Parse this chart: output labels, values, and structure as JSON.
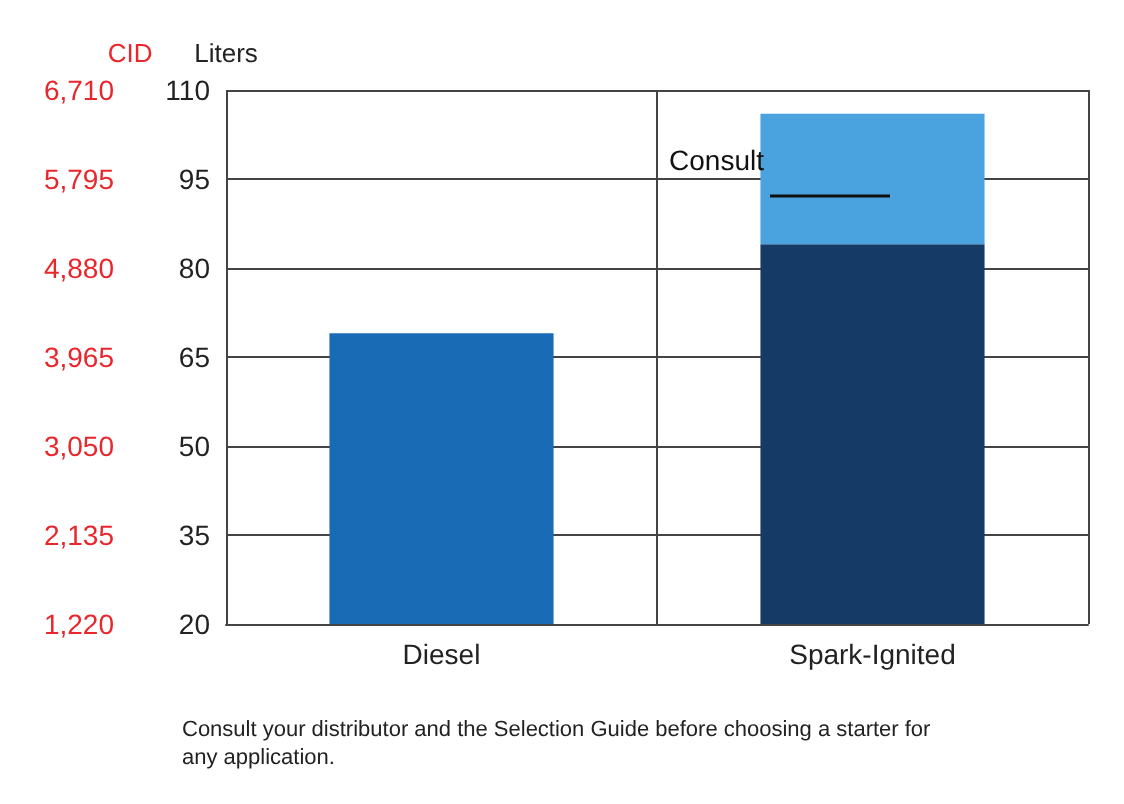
{
  "chart_data": {
    "type": "bar",
    "categories": [
      "Diesel",
      "Spark-Ignited"
    ],
    "series": [
      {
        "colors": [
          "#1a6bb5",
          "#163a66"
        ],
        "values": [
          69,
          84
        ]
      },
      {
        "color": "#4aa3df",
        "values": [
          null,
          22
        ]
      }
    ],
    "stacked": true,
    "ylabel": "Liters",
    "y2label": "CID",
    "ylim": [
      20,
      110
    ],
    "yticks": [
      20,
      35,
      50,
      65,
      80,
      95,
      110
    ],
    "y2lim": [
      1220,
      6710
    ],
    "y2ticks": [
      {
        "value": 1220,
        "label": "1,220"
      },
      {
        "value": 2135,
        "label": "2,135"
      },
      {
        "value": 3050,
        "label": "3,050"
      },
      {
        "value": 3965,
        "label": "3,965"
      },
      {
        "value": 4880,
        "label": "4,880"
      },
      {
        "value": 5795,
        "label": "5,795"
      },
      {
        "value": 6710,
        "label": "6,710"
      }
    ],
    "grid": true,
    "annotations": [
      "Consult",
      "Consult your distributor and the Selection Guide before choosing a starter for any application."
    ]
  }
}
